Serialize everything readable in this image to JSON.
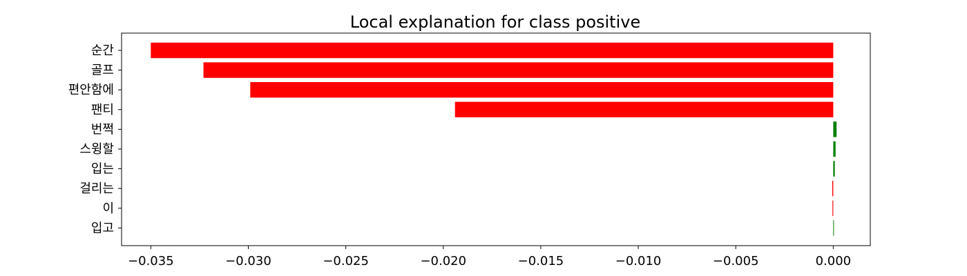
{
  "chart_data": {
    "type": "bar",
    "orientation": "horizontal",
    "title": "Local explanation for class positive",
    "xlabel": "",
    "ylabel": "",
    "categories": [
      "순간",
      "골프",
      "편안함에",
      "팬티",
      "번쩍",
      "스윙할",
      "입는",
      "걸리는",
      "이",
      "입고"
    ],
    "values": [
      -0.035,
      -0.0323,
      -0.0299,
      -0.0194,
      0.00017,
      0.00012,
      8e-05,
      -5e-05,
      -4e-05,
      3e-05
    ],
    "xlim": [
      -0.0365,
      0.0019
    ],
    "xticks": [
      -0.035,
      -0.03,
      -0.025,
      -0.02,
      -0.015,
      -0.01,
      -0.005,
      0.0
    ],
    "xtick_labels": [
      "−0.035",
      "−0.030",
      "−0.025",
      "−0.020",
      "−0.015",
      "−0.010",
      "−0.005",
      "0.000"
    ],
    "colors": {
      "positive": "#008000",
      "negative": "#ff0000"
    },
    "grid": false,
    "legend": "none"
  }
}
